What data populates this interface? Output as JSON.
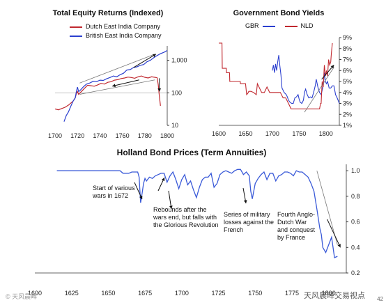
{
  "colors": {
    "dutch": "#c0282f",
    "british": "#2b3fcf",
    "gbr": "#2b3fcf",
    "nld": "#c0282f",
    "holland": "#3a5ad8",
    "trend": "#777777"
  },
  "chart_data": [
    {
      "type": "line",
      "title": "Total Equity Returns (Indexed)",
      "scale": "log",
      "xlim": [
        1700,
        1800
      ],
      "ylim": [
        10,
        2500
      ],
      "xticks": [
        "1700",
        "1720",
        "1740",
        "1760",
        "1780",
        "1800"
      ],
      "yticks": [
        "10",
        "100",
        "1,000"
      ],
      "legend": "top-left",
      "series": [
        {
          "name": "Dutch East India Company",
          "color": "dutch",
          "x": [
            1700,
            1703,
            1706,
            1709,
            1712,
            1714,
            1716,
            1718,
            1719,
            1720,
            1721,
            1723,
            1726,
            1729,
            1732,
            1735,
            1738,
            1741,
            1744,
            1747,
            1750,
            1753,
            1756,
            1759,
            1762,
            1765,
            1768,
            1771,
            1774,
            1777,
            1780,
            1783,
            1786,
            1789,
            1791,
            1792,
            1793,
            1794
          ],
          "y": [
            32,
            30,
            33,
            36,
            42,
            48,
            55,
            70,
            95,
            110,
            90,
            105,
            135,
            170,
            165,
            160,
            175,
            195,
            185,
            210,
            220,
            245,
            255,
            275,
            285,
            305,
            295,
            280,
            310,
            330,
            300,
            285,
            310,
            300,
            290,
            180,
            80,
            40
          ]
        },
        {
          "name": "British East India Company",
          "color": "british",
          "x": [
            1708,
            1710,
            1712,
            1714,
            1716,
            1718,
            1719,
            1720,
            1721,
            1722,
            1725,
            1728,
            1731,
            1734,
            1737,
            1740,
            1743,
            1746,
            1749,
            1752,
            1755,
            1758,
            1761,
            1764,
            1767,
            1770,
            1773,
            1776,
            1779,
            1782,
            1785,
            1788,
            1791,
            1794,
            1797,
            1800
          ],
          "y": [
            13,
            20,
            26,
            38,
            55,
            70,
            110,
            150,
            110,
            115,
            150,
            185,
            200,
            225,
            220,
            245,
            240,
            270,
            295,
            330,
            310,
            360,
            400,
            500,
            520,
            600,
            630,
            700,
            740,
            900,
            1000,
            1200,
            1400,
            1600,
            1750,
            2000
          ]
        }
      ]
    },
    {
      "type": "line",
      "title": "Government Bond Yields",
      "xlim": [
        1600,
        1825
      ],
      "ylim": [
        1,
        9
      ],
      "xticks": [
        "1600",
        "1650",
        "1700",
        "1750",
        "1800"
      ],
      "yticks": [
        "1%",
        "2%",
        "3%",
        "4%",
        "5%",
        "6%",
        "7%",
        "8%",
        "9%"
      ],
      "legend": "top",
      "series": [
        {
          "name": "GBR",
          "color": "gbr",
          "x": [
            1700,
            1702,
            1704,
            1706,
            1708,
            1710,
            1712,
            1714,
            1716,
            1718,
            1720,
            1722,
            1724,
            1726,
            1728,
            1730,
            1733,
            1736,
            1739,
            1742,
            1745,
            1748,
            1750,
            1752,
            1755,
            1758,
            1760,
            1762,
            1765,
            1768,
            1771,
            1774,
            1777,
            1780,
            1782,
            1785,
            1788,
            1791,
            1793,
            1795,
            1797,
            1799,
            1801,
            1803,
            1806,
            1809,
            1812,
            1815,
            1818,
            1821,
            1825
          ],
          "y": [
            6.0,
            6.5,
            5.8,
            6.6,
            6.0,
            6.8,
            7.4,
            6.4,
            5.6,
            4.4,
            4.2,
            4.0,
            3.9,
            3.8,
            3.6,
            3.3,
            3.1,
            3.0,
            3.0,
            3.5,
            3.6,
            3.8,
            3.4,
            3.1,
            3.0,
            3.3,
            4.0,
            4.3,
            3.8,
            3.5,
            3.6,
            3.5,
            4.0,
            4.6,
            5.2,
            4.5,
            4.0,
            3.8,
            4.2,
            4.6,
            5.8,
            5.0,
            4.8,
            5.0,
            4.4,
            4.4,
            4.6,
            4.6,
            3.8,
            3.5,
            3.0
          ]
        },
        {
          "name": "NLD",
          "color": "nld",
          "x": [
            1600,
            1606,
            1606.5,
            1614,
            1614.5,
            1620,
            1620.5,
            1640,
            1640.5,
            1650,
            1652,
            1654,
            1656,
            1660,
            1665,
            1670,
            1672,
            1675,
            1680,
            1685,
            1687,
            1690,
            1695,
            1700,
            1705,
            1710,
            1715,
            1720,
            1725,
            1730,
            1735,
            1740,
            1745,
            1750,
            1755,
            1760,
            1765,
            1770,
            1775,
            1780,
            1785,
            1788,
            1790,
            1791,
            1792,
            1793,
            1795,
            1797,
            1799,
            1801,
            1803,
            1805,
            1807,
            1809,
            1810,
            1812
          ],
          "y": [
            8.5,
            8.5,
            6.2,
            6.2,
            5.8,
            5.8,
            5.0,
            5.0,
            4.8,
            4.8,
            3.8,
            3.9,
            4.1,
            4.1,
            4.0,
            3.8,
            4.8,
            4.5,
            4.0,
            4.0,
            4.2,
            4.5,
            4.0,
            4.0,
            4.0,
            4.0,
            4.0,
            3.5,
            3.5,
            3.0,
            2.5,
            2.5,
            2.5,
            2.5,
            2.5,
            2.5,
            2.5,
            2.5,
            2.5,
            2.5,
            2.5,
            2.5,
            3.0,
            3.0,
            4.0,
            5.0,
            4.5,
            6.5,
            5.5,
            6.0,
            5.5,
            7.0,
            6.5,
            6.8,
            7.5,
            8.5
          ]
        }
      ]
    },
    {
      "type": "line",
      "title": "Holland Bond Prices (Term Annuities)",
      "xlim": [
        1600,
        1812
      ],
      "ylim": [
        0.2,
        1.05
      ],
      "xticks": [
        "1600",
        "1625",
        "1650",
        "1675",
        "1700",
        "1725",
        "1750",
        "1775",
        "1800"
      ],
      "yticks": [
        "0.2",
        "0.4",
        "0.6",
        "0.8",
        "1.0"
      ],
      "series": [
        {
          "name": "",
          "color": "holland",
          "x": [
            1615,
            1622,
            1630,
            1640,
            1650,
            1658,
            1660,
            1664,
            1666,
            1668,
            1670,
            1671,
            1672,
            1673,
            1674,
            1675,
            1676,
            1678,
            1680,
            1682,
            1684,
            1686,
            1688,
            1690,
            1692,
            1694,
            1696,
            1698,
            1700,
            1702,
            1704,
            1706,
            1708,
            1710,
            1712,
            1714,
            1716,
            1718,
            1720,
            1722,
            1724,
            1726,
            1728,
            1730,
            1732,
            1734,
            1736,
            1738,
            1740,
            1742,
            1744,
            1746,
            1747,
            1748,
            1750,
            1752,
            1754,
            1756,
            1758,
            1760,
            1762,
            1764,
            1766,
            1768,
            1770,
            1772,
            1774,
            1776,
            1778,
            1780,
            1782,
            1784,
            1786,
            1788,
            1790,
            1792,
            1794,
            1795,
            1796,
            1798,
            1800,
            1802,
            1804,
            1806
          ],
          "y": [
            1.0,
            1.0,
            1.0,
            1.0,
            1.0,
            1.0,
            0.98,
            0.98,
            0.99,
            0.99,
            0.99,
            0.95,
            0.75,
            0.82,
            0.9,
            0.94,
            0.92,
            0.95,
            0.94,
            0.96,
            0.97,
            0.98,
            0.98,
            0.91,
            0.96,
            0.99,
            0.93,
            0.86,
            0.93,
            0.97,
            0.89,
            0.92,
            0.85,
            0.79,
            0.87,
            0.93,
            0.95,
            0.95,
            0.98,
            0.87,
            0.9,
            0.97,
            0.99,
            1.0,
            0.99,
            0.98,
            1.0,
            1.01,
            1.01,
            0.97,
            0.99,
            0.96,
            0.84,
            0.78,
            0.9,
            0.94,
            0.97,
            0.99,
            0.93,
            0.98,
            0.98,
            0.92,
            0.96,
            0.97,
            0.99,
            0.99,
            0.98,
            0.96,
            1.0,
            0.99,
            0.99,
            0.97,
            0.95,
            0.9,
            0.84,
            0.7,
            0.55,
            0.5,
            0.4,
            0.36,
            0.42,
            0.48,
            0.32,
            0.33
          ]
        }
      ],
      "annotations": [
        {
          "lines": [
            "Start of various",
            "wars in 1672"
          ]
        },
        {
          "lines": [
            "Rebounds after the",
            "wars end, but falls with",
            "the Glorious Revolution"
          ]
        },
        {
          "lines": [
            "Series of military",
            "losses against the",
            "French"
          ]
        },
        {
          "lines": [
            "Fourth Anglo-",
            "Dutch War",
            "and conquest",
            "by France"
          ]
        }
      ]
    }
  ],
  "watermark": {
    "left": "© 天风晨晖",
    "right": "天风晨晖交易视点",
    "corner": "42"
  }
}
